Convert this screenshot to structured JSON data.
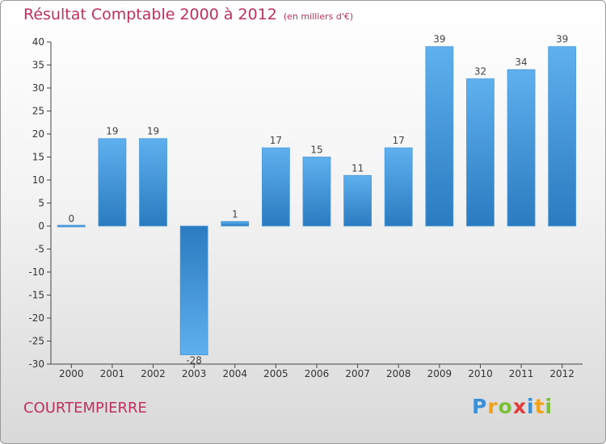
{
  "title": "Résultat Comptable 2000 à 2012",
  "subtitle": "(en milliers d'€)",
  "commune": "COURTEMPIERRE",
  "logo": {
    "text": "Proxiti",
    "letters": [
      {
        "ch": "P",
        "color": "#3a8fd6"
      },
      {
        "ch": "r",
        "color": "#f0a21c"
      },
      {
        "ch": "o",
        "color": "#7bbf3a"
      },
      {
        "ch": "x",
        "color": "#e23b3b"
      },
      {
        "ch": "i",
        "color": "#3a8fd6"
      },
      {
        "ch": "t",
        "color": "#f0a21c"
      },
      {
        "ch": "i",
        "color": "#7bbf3a"
      }
    ]
  },
  "colors": {
    "title": "#c0305c",
    "bar_light": "#5fb0ee",
    "bar_dark": "#2a7bc0"
  },
  "chart_data": {
    "type": "bar",
    "title": "Résultat Comptable 2000 à 2012",
    "subtitle": "(en milliers d'€)",
    "categories": [
      "2000",
      "2001",
      "2002",
      "2003",
      "2004",
      "2005",
      "2006",
      "2007",
      "2008",
      "2009",
      "2010",
      "2011",
      "2012"
    ],
    "values": [
      0,
      19,
      19,
      -28,
      1,
      17,
      15,
      11,
      17,
      39,
      32,
      34,
      39
    ],
    "ylim": [
      -30,
      40
    ],
    "yticks": [
      40,
      35,
      30,
      25,
      20,
      15,
      10,
      5,
      0,
      -5,
      -10,
      -15,
      -20,
      -25,
      -30
    ],
    "grid": false,
    "xlabel": "",
    "ylabel": ""
  }
}
